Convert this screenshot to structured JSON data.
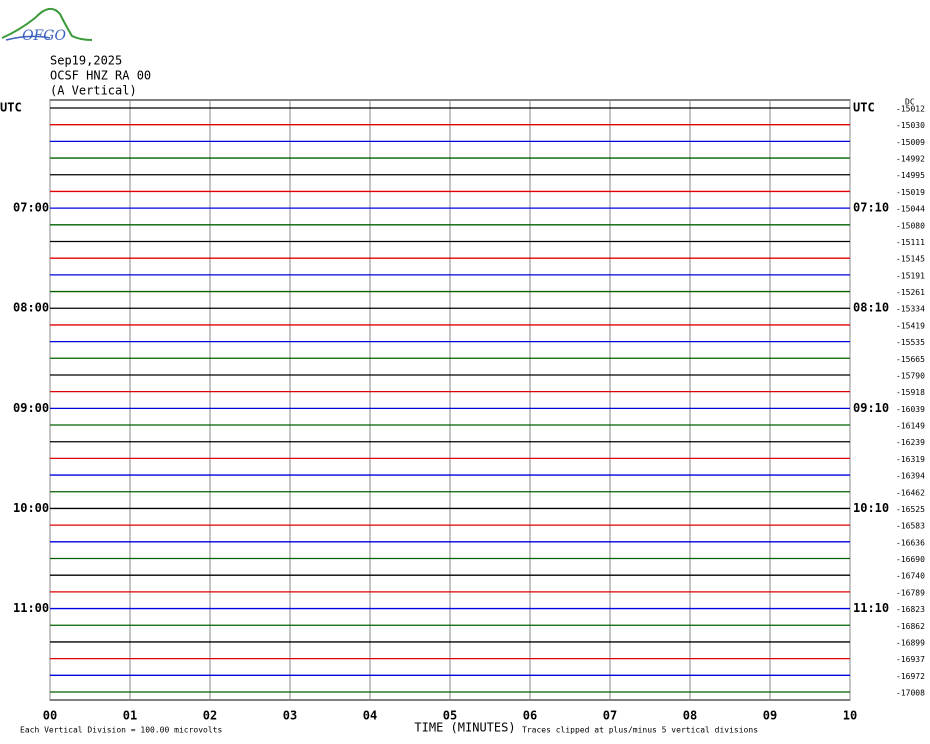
{
  "chart_data": {
    "type": "helicorder",
    "logo": "OFGO",
    "title": "Sep19,2025",
    "subtitle": "OCSF HNZ RA 00",
    "component": "(A Vertical)",
    "dc_label": "DC",
    "xlabel": "TIME (MINUTES)",
    "scale_note": "Each Vertical Division =  100.00 microvolts",
    "clip_note": "Traces clipped at plus/minus 5 vertical divisions",
    "xlim": [
      0,
      10
    ],
    "xticks": [
      {
        "value": 0,
        "label": "00"
      },
      {
        "value": 1,
        "label": "01"
      },
      {
        "value": 2,
        "label": "02"
      },
      {
        "value": 3,
        "label": "03"
      },
      {
        "value": 4,
        "label": "04"
      },
      {
        "value": 5,
        "label": "05"
      },
      {
        "value": 6,
        "label": "06"
      },
      {
        "value": 7,
        "label": "07"
      },
      {
        "value": 8,
        "label": "08"
      },
      {
        "value": 9,
        "label": "09"
      },
      {
        "value": 10,
        "label": "10"
      }
    ],
    "colors": [
      "#000000",
      "#e00000",
      "#0000e0",
      "#006000"
    ],
    "left_labels": [
      "UTC",
      null,
      null,
      null,
      null,
      null,
      "07:00",
      null,
      null,
      null,
      null,
      null,
      "08:00",
      null,
      null,
      null,
      null,
      null,
      "09:00",
      null,
      null,
      null,
      null,
      null,
      "10:00",
      null,
      null,
      null,
      null,
      null,
      "11:00",
      null,
      null,
      null,
      null,
      null
    ],
    "right_labels": [
      "UTC",
      null,
      null,
      null,
      null,
      null,
      "07:10",
      null,
      null,
      null,
      null,
      null,
      "08:10",
      null,
      null,
      null,
      null,
      null,
      "09:10",
      null,
      null,
      null,
      null,
      null,
      "10:10",
      null,
      null,
      null,
      null,
      null,
      "11:10",
      null,
      null,
      null,
      null,
      null
    ],
    "offsets": [
      -15012,
      -15030,
      -15009,
      -14992,
      -14995,
      -15019,
      -15044,
      -15080,
      -15111,
      -15145,
      -15191,
      -15261,
      -15334,
      -15419,
      -15535,
      -15665,
      -15790,
      -15918,
      -16039,
      -16149,
      -16239,
      -16319,
      -16394,
      -16462,
      -16525,
      -16583,
      -16636,
      -16690,
      -16740,
      -16789,
      -16823,
      -16862,
      -16899,
      -16937,
      -16972,
      -17008
    ]
  }
}
